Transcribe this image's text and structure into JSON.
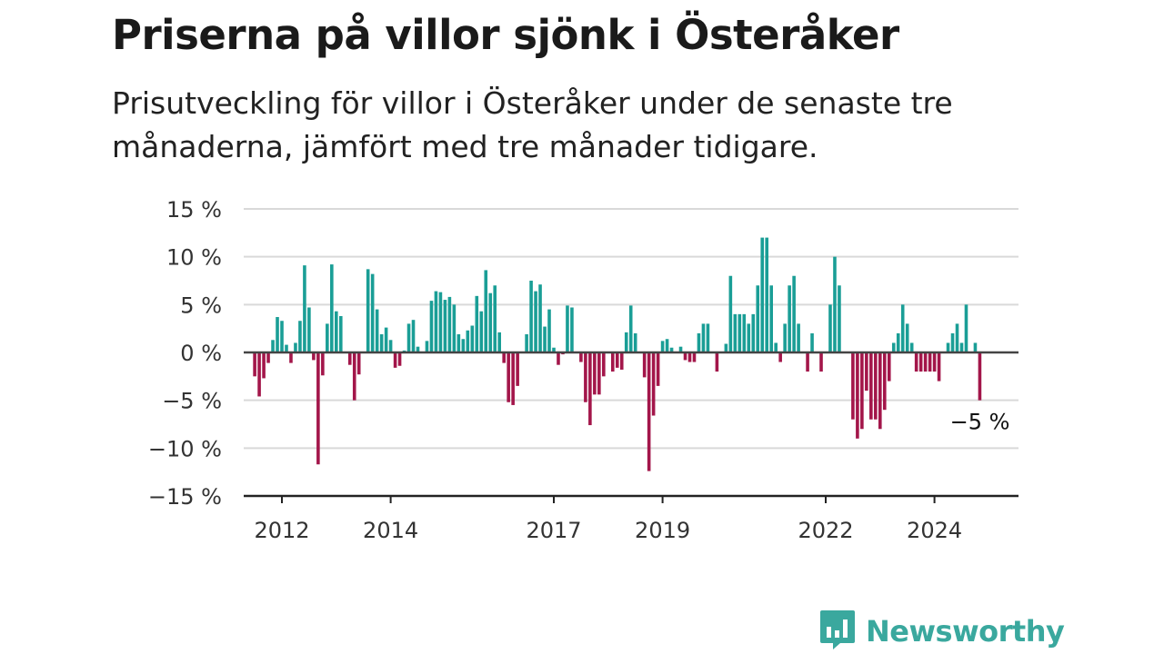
{
  "header": {
    "title": "Priserna på villor sjönk i Österåker",
    "subtitle": "Prisutveckling för villor i Österåker under de senaste tre månaderna, jämfört med tre månader tidigare."
  },
  "brand": {
    "name": "Newsworthy",
    "icon": "bar-chart-bubble-icon",
    "color": "#3aa89e"
  },
  "colors": {
    "positive": "#1a9e96",
    "negative": "#a3164a",
    "grid": "#d9d9d9",
    "zero_line": "#444444"
  },
  "chart_data": {
    "type": "bar",
    "title": "",
    "xlabel": "",
    "ylabel": "",
    "ylim": [
      -15,
      15
    ],
    "y_ticks": [
      15,
      10,
      5,
      0,
      -5,
      -10,
      -15
    ],
    "y_tick_labels": [
      "15 %",
      "10 %",
      "5 %",
      "0 %",
      "−5 %",
      "−10 %",
      "−15 %"
    ],
    "x_ticks": [
      2012,
      2014,
      2017,
      2019,
      2022,
      2024
    ],
    "x_tick_labels": [
      "2012",
      "2014",
      "2017",
      "2019",
      "2022",
      "2024"
    ],
    "grid": true,
    "x_start": 2011.5,
    "frequency": "monthly",
    "annotation": {
      "text": "−5 %",
      "value": -5
    },
    "values": [
      -2.5,
      -4.6,
      -2.7,
      -1.1,
      1.3,
      3.7,
      3.3,
      0.8,
      -1.1,
      1.0,
      3.3,
      9.1,
      4.7,
      -0.8,
      -11.7,
      -2.4,
      3.0,
      9.2,
      4.3,
      3.8,
      0,
      -1.3,
      -5.0,
      -2.3,
      0,
      8.7,
      8.2,
      4.5,
      1.9,
      2.6,
      1.3,
      -1.6,
      -1.4,
      0.2,
      3.0,
      3.4,
      0.6,
      0,
      1.2,
      5.4,
      6.4,
      6.3,
      5.5,
      5.8,
      5.0,
      1.9,
      1.4,
      2.3,
      2.8,
      5.9,
      4.3,
      8.6,
      6.2,
      7.0,
      2.1,
      -1.1,
      -5.2,
      -5.5,
      -3.5,
      0,
      1.9,
      7.5,
      6.4,
      7.1,
      2.7,
      4.5,
      0.5,
      -1.3,
      -0.2,
      4.9,
      4.7,
      0,
      -1.0,
      -5.2,
      -7.6,
      -4.4,
      -4.4,
      -2.5,
      0,
      -2.0,
      -1.6,
      -1.8,
      2.1,
      4.9,
      2.0,
      0,
      -2.6,
      -12.4,
      -6.6,
      -3.5,
      1.2,
      1.4,
      0.5,
      0,
      0.6,
      -0.8,
      -1.0,
      -1.0,
      2.0,
      3.0,
      3.0,
      0,
      -2.0,
      0,
      0.9,
      8.0,
      4.0,
      4.0,
      4.0,
      3.0,
      4.0,
      7.0,
      12.0,
      12.0,
      7.0,
      1.0,
      -1.0,
      3.0,
      7.0,
      8.0,
      3.0,
      0,
      -2.0,
      2.0,
      0,
      -2.0,
      0,
      5.0,
      10.0,
      7.0,
      0,
      0,
      -7.0,
      -9.0,
      -8.0,
      -4.0,
      -7.0,
      -7.0,
      -8.0,
      -6.0,
      -3.0,
      1.0,
      2.0,
      5.0,
      3.0,
      1.0,
      -2.0,
      -2.0,
      -2.0,
      -2.0,
      -2.0,
      -3.0,
      0,
      1.0,
      2.0,
      3.0,
      1.0,
      5.0,
      0,
      1.0,
      -5.0
    ]
  }
}
